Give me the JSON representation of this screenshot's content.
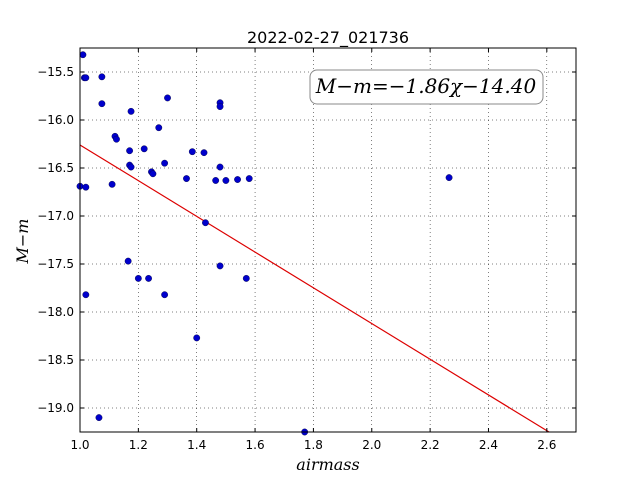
{
  "chart_data": {
    "type": "scatter",
    "title": "2022-02-27_021736",
    "xlabel": "airmass",
    "ylabel": "M−m",
    "annotation": "M−m=−1.86χ−14.40",
    "xlim": [
      1.0,
      2.7
    ],
    "ylim": [
      -19.25,
      -15.25
    ],
    "xticks": [
      1.0,
      1.2,
      1.4,
      1.6,
      1.8,
      2.0,
      2.2,
      2.4,
      2.6
    ],
    "xtick_labels": [
      "1.0",
      "1.2",
      "1.4",
      "1.6",
      "1.8",
      "2.0",
      "2.2",
      "2.4",
      "2.6"
    ],
    "yticks": [
      -15.5,
      -16.0,
      -16.5,
      -17.0,
      -17.5,
      -18.0,
      -18.5,
      -19.0
    ],
    "ytick_labels": [
      "−15.5",
      "−16.0",
      "−16.5",
      "−17.0",
      "−17.5",
      "−18.0",
      "−18.5",
      "−19.0"
    ],
    "grid": true,
    "point_color": "#0000cc",
    "line_color": "#dd0000",
    "fit": {
      "slope": -1.86,
      "intercept": -14.4
    },
    "points": [
      {
        "x": 1.01,
        "y": -15.32
      },
      {
        "x": 1.015,
        "y": -15.56
      },
      {
        "x": 1.02,
        "y": -15.56
      },
      {
        "x": 1.075,
        "y": -15.55
      },
      {
        "x": 1.075,
        "y": -15.83
      },
      {
        "x": 1.175,
        "y": -15.91
      },
      {
        "x": 1.3,
        "y": -15.77
      },
      {
        "x": 1.48,
        "y": -15.82
      },
      {
        "x": 1.48,
        "y": -15.86
      },
      {
        "x": 1.27,
        "y": -16.08
      },
      {
        "x": 1.12,
        "y": -16.17
      },
      {
        "x": 1.125,
        "y": -16.2
      },
      {
        "x": 1.22,
        "y": -16.3
      },
      {
        "x": 1.17,
        "y": -16.32
      },
      {
        "x": 1.385,
        "y": -16.33
      },
      {
        "x": 1.425,
        "y": -16.34
      },
      {
        "x": 1.29,
        "y": -16.45
      },
      {
        "x": 1.17,
        "y": -16.47
      },
      {
        "x": 1.175,
        "y": -16.49
      },
      {
        "x": 1.48,
        "y": -16.49
      },
      {
        "x": 1.245,
        "y": -16.54
      },
      {
        "x": 1.25,
        "y": -16.56
      },
      {
        "x": 1.365,
        "y": -16.61
      },
      {
        "x": 1.465,
        "y": -16.63
      },
      {
        "x": 1.5,
        "y": -16.63
      },
      {
        "x": 1.54,
        "y": -16.62
      },
      {
        "x": 1.58,
        "y": -16.61
      },
      {
        "x": 2.265,
        "y": -16.6
      },
      {
        "x": 1.0,
        "y": -16.69
      },
      {
        "x": 1.02,
        "y": -16.7
      },
      {
        "x": 1.11,
        "y": -16.67
      },
      {
        "x": 1.43,
        "y": -17.07
      },
      {
        "x": 1.165,
        "y": -17.47
      },
      {
        "x": 1.48,
        "y": -17.52
      },
      {
        "x": 1.2,
        "y": -17.65
      },
      {
        "x": 1.235,
        "y": -17.65
      },
      {
        "x": 1.57,
        "y": -17.65
      },
      {
        "x": 1.02,
        "y": -17.82
      },
      {
        "x": 1.29,
        "y": -17.82
      },
      {
        "x": 1.4,
        "y": -18.27
      },
      {
        "x": 1.065,
        "y": -19.1
      },
      {
        "x": 1.77,
        "y": -19.25
      }
    ]
  }
}
